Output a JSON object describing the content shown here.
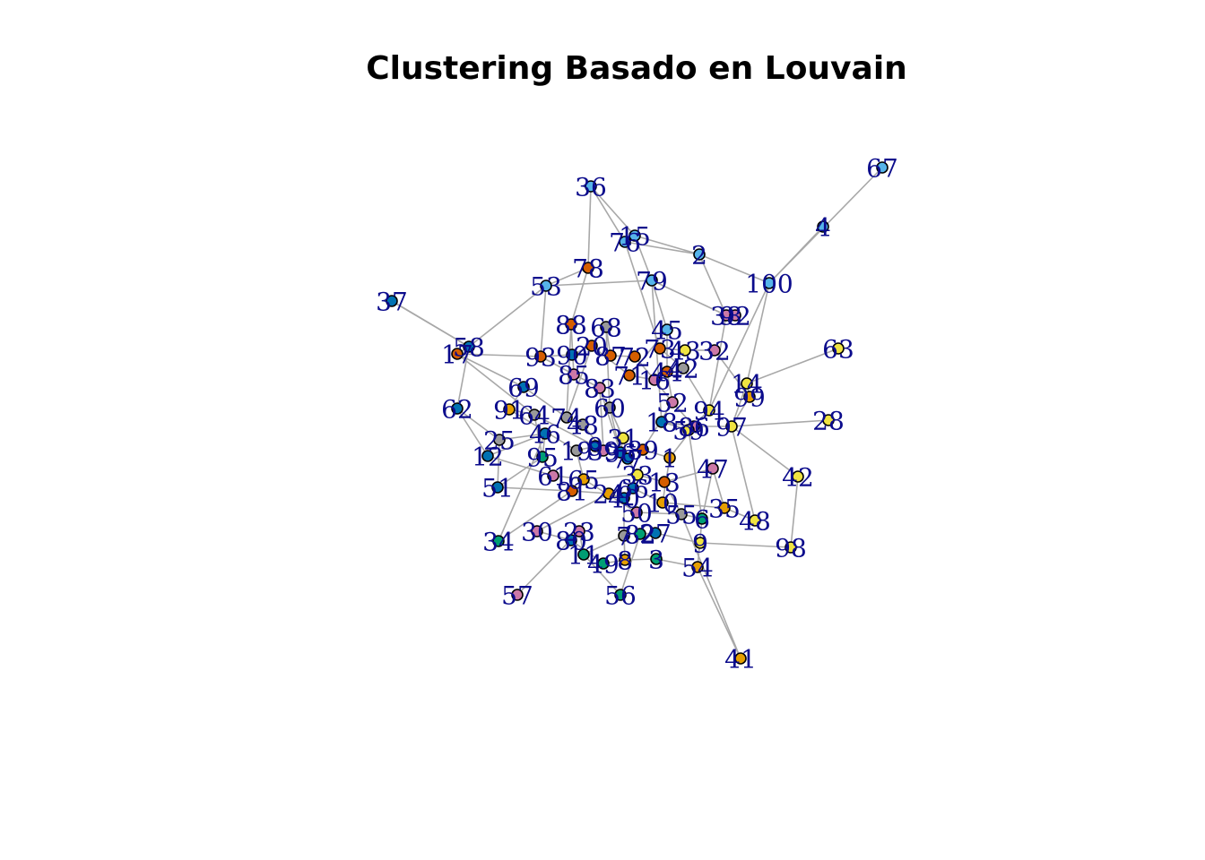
{
  "title": "Clustering Basado en Louvain",
  "palette": {
    "c1": "#56b4e9",
    "c2": "#d55e00",
    "c3": "#0072b2",
    "c4": "#e69f00",
    "c5": "#f0e442",
    "c6": "#cc79a7",
    "c7": "#009e73",
    "c8": "#999999"
  },
  "nodes": [
    {
      "id": "67",
      "g": "c1"
    },
    {
      "id": "4",
      "g": "c1"
    },
    {
      "id": "36",
      "g": "c1"
    },
    {
      "id": "15",
      "g": "c1"
    },
    {
      "id": "76",
      "g": "c1"
    },
    {
      "id": "2",
      "g": "c1"
    },
    {
      "id": "100",
      "g": "c1"
    },
    {
      "id": "78",
      "g": "c2"
    },
    {
      "id": "79",
      "g": "c1"
    },
    {
      "id": "53",
      "g": "c1"
    },
    {
      "id": "37",
      "g": "c3"
    },
    {
      "id": "38",
      "g": "c6"
    },
    {
      "id": "92",
      "g": "c6"
    },
    {
      "id": "45",
      "g": "c1"
    },
    {
      "id": "88",
      "g": "c2"
    },
    {
      "id": "68",
      "g": "c8"
    },
    {
      "id": "63",
      "g": "c5"
    },
    {
      "id": "58",
      "g": "c3"
    },
    {
      "id": "17",
      "g": "c2"
    },
    {
      "id": "93",
      "g": "c2"
    },
    {
      "id": "90",
      "g": "c3"
    },
    {
      "id": "20",
      "g": "c2"
    },
    {
      "id": "87",
      "g": "c2"
    },
    {
      "id": "72",
      "g": "c2"
    },
    {
      "id": "73",
      "g": "c2"
    },
    {
      "id": "43",
      "g": "c5"
    },
    {
      "id": "32",
      "g": "c6"
    },
    {
      "id": "85",
      "g": "c6"
    },
    {
      "id": "71",
      "g": "c2"
    },
    {
      "id": "44",
      "g": "c2"
    },
    {
      "id": "42",
      "g": "c8"
    },
    {
      "id": "16",
      "g": "c6"
    },
    {
      "id": "14",
      "g": "c5"
    },
    {
      "id": "69",
      "g": "c3"
    },
    {
      "id": "83",
      "g": "c6"
    },
    {
      "id": "99",
      "g": "c4"
    },
    {
      "id": "52",
      "g": "c6"
    },
    {
      "id": "62",
      "g": "c3"
    },
    {
      "id": "60",
      "g": "c8"
    },
    {
      "id": "94",
      "g": "c5"
    },
    {
      "id": "91",
      "g": "c4"
    },
    {
      "id": "64",
      "g": "c8"
    },
    {
      "id": "74",
      "g": "c8"
    },
    {
      "id": "48x",
      "g": "c8"
    },
    {
      "id": "28",
      "g": "c5"
    },
    {
      "id": "18",
      "g": "c3"
    },
    {
      "id": "86",
      "g": "c6"
    },
    {
      "id": "97",
      "g": "c5"
    },
    {
      "id": "25",
      "g": "c8"
    },
    {
      "id": "46",
      "g": "c3"
    },
    {
      "id": "31",
      "g": "c5"
    },
    {
      "id": "12",
      "g": "c3"
    },
    {
      "id": "19",
      "g": "c8"
    },
    {
      "id": "96",
      "g": "c3"
    },
    {
      "id": "9x",
      "g": "c3"
    },
    {
      "id": "89",
      "g": "c2"
    },
    {
      "id": "1",
      "g": "c4"
    },
    {
      "id": "95",
      "g": "c7"
    },
    {
      "id": "42b",
      "g": "c5"
    },
    {
      "id": "47",
      "g": "c6"
    },
    {
      "id": "61",
      "g": "c6"
    },
    {
      "id": "65",
      "g": "c4"
    },
    {
      "id": "33",
      "g": "c5"
    },
    {
      "id": "13",
      "g": "c2"
    },
    {
      "id": "51",
      "g": "c3"
    },
    {
      "id": "81",
      "g": "c2"
    },
    {
      "id": "24",
      "g": "c4"
    },
    {
      "id": "40",
      "g": "c3"
    },
    {
      "id": "66",
      "g": "c3"
    },
    {
      "id": "10",
      "g": "c4"
    },
    {
      "id": "50",
      "g": "c6"
    },
    {
      "id": "55",
      "g": "c8"
    },
    {
      "id": "6",
      "g": "c7"
    },
    {
      "id": "35",
      "g": "c4"
    },
    {
      "id": "48",
      "g": "c5"
    },
    {
      "id": "34",
      "g": "c7"
    },
    {
      "id": "30",
      "g": "c6"
    },
    {
      "id": "23",
      "g": "c6"
    },
    {
      "id": "80",
      "g": "c3"
    },
    {
      "id": "7",
      "g": "c8"
    },
    {
      "id": "82",
      "g": "c7"
    },
    {
      "id": "27",
      "g": "c3"
    },
    {
      "id": "9",
      "g": "c5"
    },
    {
      "id": "98",
      "g": "c5"
    },
    {
      "id": "11",
      "g": "c7"
    },
    {
      "id": "49",
      "g": "c7"
    },
    {
      "id": "8",
      "g": "c4"
    },
    {
      "id": "3",
      "g": "c7"
    },
    {
      "id": "54",
      "g": "c4"
    },
    {
      "id": "57",
      "g": "c6"
    },
    {
      "id": "56",
      "g": "c7"
    },
    {
      "id": "41",
      "g": "c4"
    },
    {
      "id": "39",
      "g": "c6"
    },
    {
      "id": "59",
      "g": "c5"
    },
    {
      "id": "77",
      "g": "c3"
    }
  ]
}
